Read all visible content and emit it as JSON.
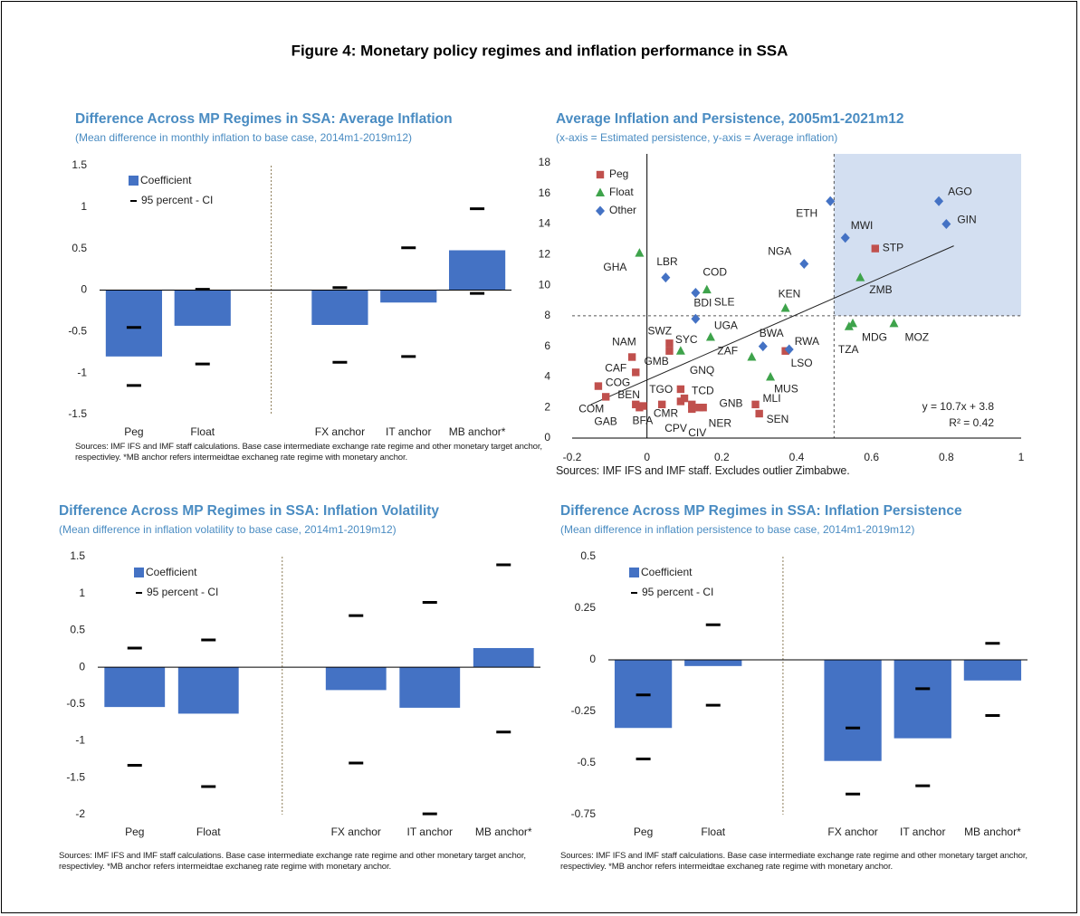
{
  "figure_title": "Figure 4: Monetary policy regimes and inflation performance in SSA",
  "chart_data": [
    {
      "type": "bar",
      "title": "Difference Across MP Regimes in SSA: Average Inflation",
      "subtitle": "(Mean difference in monthly inflation to base case, 2014m1-2019m12)",
      "source": "Sources: IMF IFS and IMF staff calculations. Base case intermediate exchange rate regime and other monetary target anchor, respectivley.  *MB anchor refers intermeidtae exchaneg rate regime with monetary anchor.",
      "categories": [
        "Peg",
        "Float",
        null,
        "FX anchor",
        "IT anchor",
        "MB anchor*"
      ],
      "series": [
        {
          "name": "Coefficient",
          "color": "#4472c4",
          "values": [
            -0.8,
            -0.43,
            null,
            -0.42,
            -0.15,
            0.48
          ]
        },
        {
          "name": "95 percent - CI",
          "color": "#000000",
          "lower": [
            -1.15,
            -0.89,
            null,
            -0.87,
            -0.8,
            -0.04
          ],
          "upper": [
            -0.45,
            0.01,
            null,
            0.03,
            0.51,
            0.98
          ]
        }
      ],
      "ylim": [
        -1.5,
        1.5
      ],
      "yticks": [
        -1.5,
        -1,
        -0.5,
        0,
        0.5,
        1,
        1.5
      ],
      "legend": "upper left"
    },
    {
      "type": "scatter",
      "title": "Average Inflation and Persistence, 2005m1-2021m12",
      "subtitle": "(x-axis = Estimated persistence, y-axis = Average inflation)",
      "source": "Sources: IMF IFS and IMF staff. Excludes outlier Zimbabwe.",
      "series": [
        {
          "name": "Peg",
          "color": "#c0504d",
          "marker": "square",
          "labels": [
            "STP",
            "NAM",
            "SWZ",
            "CAF",
            "COG",
            "COM",
            "BEN",
            "GAB",
            "BFA",
            "GMB",
            "TGO",
            "GNQ",
            "TCD",
            "CMR",
            "CPV",
            "CIV",
            "NER",
            "GNB",
            "MLI",
            "SEN",
            "LSO"
          ],
          "x": [
            0.61,
            -0.04,
            0.06,
            -0.03,
            -0.13,
            -0.11,
            -0.03,
            -0.02,
            -0.01,
            0.06,
            0.04,
            0.09,
            0.1,
            0.09,
            0.12,
            0.12,
            0.15,
            0.14,
            0.29,
            0.3,
            0.37
          ],
          "y": [
            12.4,
            5.3,
            6.2,
            4.3,
            3.4,
            2.7,
            2.2,
            2.0,
            2.1,
            5.7,
            2.2,
            3.2,
            2.6,
            2.4,
            2.2,
            1.9,
            2.0,
            2.0,
            2.2,
            1.6,
            5.7
          ]
        },
        {
          "name": "Float",
          "color": "#3ea34b",
          "marker": "triangle",
          "labels": [
            "GHA",
            "SLE",
            "KEN",
            "UGA",
            "SYC",
            "ZAF",
            "MUS",
            "ZMB",
            "TZA",
            "MDG",
            "MOZ"
          ],
          "x": [
            -0.02,
            0.16,
            0.37,
            0.17,
            0.09,
            0.28,
            0.33,
            0.57,
            0.54,
            0.55,
            0.66
          ],
          "y": [
            12.1,
            9.7,
            8.5,
            6.6,
            5.7,
            5.3,
            4.0,
            10.5,
            7.3,
            7.5,
            7.5
          ]
        },
        {
          "name": "Other",
          "color": "#4472c4",
          "marker": "diamond",
          "labels": [
            "AGO",
            "GIN",
            "ETH",
            "MWI",
            "NGA",
            "LBR",
            "COD",
            "BDI",
            "BWA",
            "RWA"
          ],
          "x": [
            0.78,
            0.8,
            0.49,
            0.53,
            0.42,
            0.05,
            0.13,
            0.13,
            0.31,
            0.38
          ],
          "y": [
            15.5,
            14.0,
            15.5,
            13.1,
            11.4,
            10.5,
            9.5,
            7.8,
            6.0,
            5.8
          ]
        }
      ],
      "trendline": {
        "slope": 10.7,
        "intercept": 3.8,
        "xlim": [
          -0.15,
          0.82
        ],
        "equation": "y = 10.7x + 3.8",
        "r_squared": "R² = 0.42"
      },
      "reference_lines": {
        "x": 0.5,
        "y": 8
      },
      "shade": "upper right",
      "shade_color": "#d3dff1",
      "xlim": [
        -0.2,
        1
      ],
      "xticks": [
        -0.2,
        0,
        0.2,
        0.4,
        0.6,
        0.8,
        1
      ],
      "ylim": [
        0,
        18
      ],
      "yticks": [
        0,
        2,
        4,
        6,
        8,
        10,
        12,
        14,
        16,
        18
      ],
      "legend": "upper left"
    },
    {
      "type": "bar",
      "title": "Difference Across MP Regimes in SSA: Inflation Volatility",
      "subtitle": "(Mean difference in inflation volatility to base case, 2014m1-2019m12)",
      "source": "Sources: IMF IFS and IMF staff calculations. Base case intermediate exchange rate regime and other monetary target anchor, respectivley.  *MB anchor refers intermeidtae exchaneg rate regime with monetary anchor.",
      "categories": [
        "Peg",
        "Float",
        null,
        "FX anchor",
        "IT anchor",
        "MB anchor*"
      ],
      "series": [
        {
          "name": "Coefficient",
          "color": "#4472c4",
          "values": [
            -0.54,
            -0.63,
            null,
            -0.31,
            -0.55,
            0.26
          ]
        },
        {
          "name": "95 percent - CI",
          "color": "#000000",
          "lower": [
            -1.33,
            -1.62,
            null,
            -1.3,
            -1.99,
            -0.88
          ],
          "upper": [
            0.26,
            0.37,
            null,
            0.7,
            0.88,
            1.39
          ]
        }
      ],
      "ylim": [
        -2,
        1.5
      ],
      "yticks": [
        -2,
        -1.5,
        -1,
        -0.5,
        0,
        0.5,
        1,
        1.5
      ],
      "legend": "upper left"
    },
    {
      "type": "bar",
      "title": "Difference Across MP Regimes in SSA: Inflation Persistence",
      "subtitle": "(Mean difference in inflation persistence to base case, 2014m1-2019m12)",
      "source": "Sources: IMF IFS and IMF staff calculations. Base case intermediate exchange rate regime and other monetary target anchor, respectivley.  *MB anchor refers intermeidtae exchaneg rate regime with monetary anchor.",
      "categories": [
        "Peg",
        "Float",
        null,
        "FX anchor",
        "IT anchor",
        "MB anchor*"
      ],
      "series": [
        {
          "name": "Coefficient",
          "color": "#4472c4",
          "values": [
            -0.33,
            -0.03,
            null,
            -0.49,
            -0.38,
            -0.1
          ]
        },
        {
          "name": "95 percent - CI",
          "color": "#000000",
          "lower": [
            -0.48,
            -0.22,
            null,
            -0.65,
            -0.61,
            -0.27
          ],
          "upper": [
            -0.17,
            0.17,
            null,
            -0.33,
            -0.14,
            0.08
          ]
        }
      ],
      "ylim": [
        -0.75,
        0.5
      ],
      "yticks": [
        -0.75,
        -0.5,
        -0.25,
        0,
        0.25,
        0.5
      ],
      "legend": "upper left"
    }
  ]
}
